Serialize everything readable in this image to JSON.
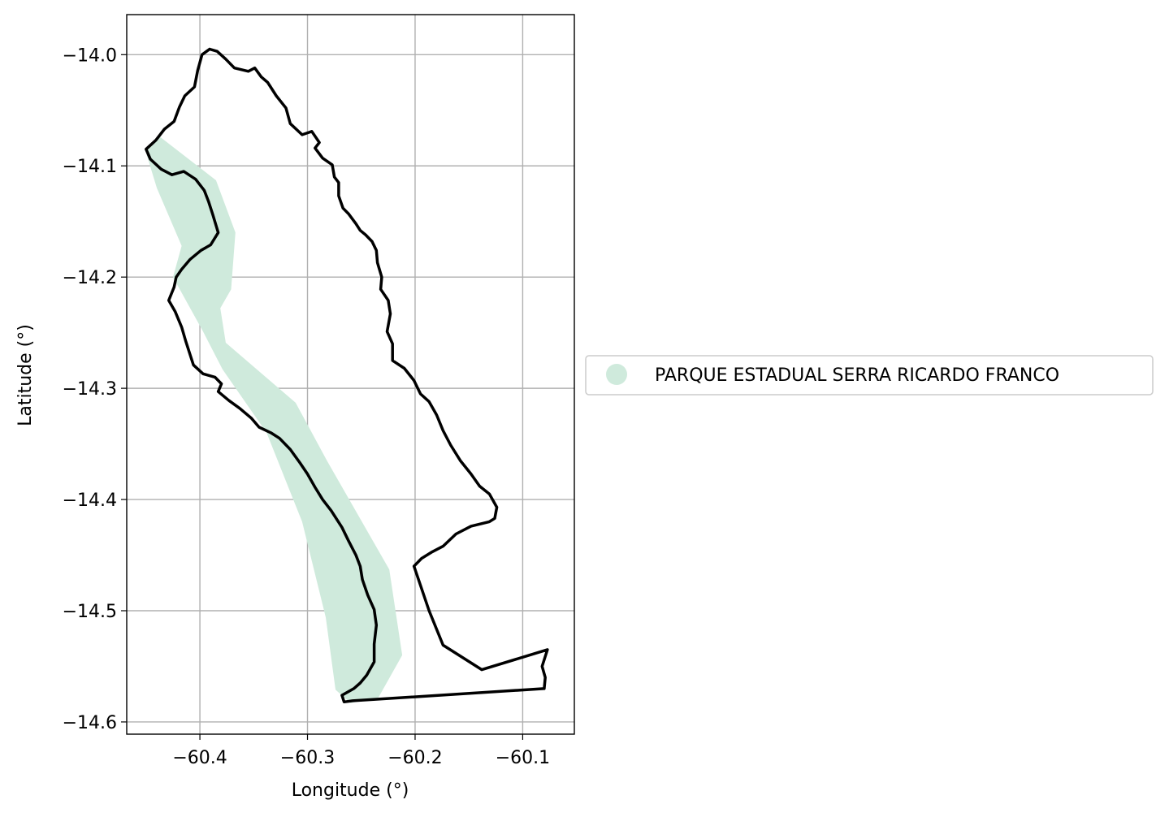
{
  "chart_data": {
    "type": "map",
    "xlabel": "Longitude (°)",
    "ylabel": "Latitude (°)",
    "xlim": [
      -60.468,
      -60.052
    ],
    "ylim": [
      -14.611,
      -13.964
    ],
    "xticks": [
      {
        "value": -60.4,
        "label": "−60.4"
      },
      {
        "value": -60.3,
        "label": "−60.3"
      },
      {
        "value": -60.2,
        "label": "−60.2"
      },
      {
        "value": -60.1,
        "label": "−60.1"
      }
    ],
    "yticks": [
      {
        "value": -14.0,
        "label": "−14.0"
      },
      {
        "value": -14.1,
        "label": "−14.1"
      },
      {
        "value": -14.2,
        "label": "−14.2"
      },
      {
        "value": -14.3,
        "label": "−14.3"
      },
      {
        "value": -14.4,
        "label": "−14.4"
      },
      {
        "value": -14.5,
        "label": "−14.5"
      },
      {
        "value": -14.6,
        "label": "−14.6"
      }
    ],
    "grid": true,
    "legend": {
      "placement": "right-center",
      "entries": [
        {
          "label": "PARQUE ESTADUAL SERRA RICARDO FRANCO",
          "color": "#cfeadc",
          "marker": "circle"
        }
      ]
    },
    "layers": [
      {
        "name": "PARQUE ESTADUAL SERRA RICARDO FRANCO",
        "kind": "fill",
        "color": "#cfeadc",
        "coords": [
          [
            -60.437,
            -14.074
          ],
          [
            -60.385,
            -14.113
          ],
          [
            -60.367,
            -14.16
          ],
          [
            -60.371,
            -14.211
          ],
          [
            -60.381,
            -14.228
          ],
          [
            -60.376,
            -14.259
          ],
          [
            -60.311,
            -14.313
          ],
          [
            -60.282,
            -14.365
          ],
          [
            -60.224,
            -14.463
          ],
          [
            -60.212,
            -14.54
          ],
          [
            -60.234,
            -14.578
          ],
          [
            -60.26,
            -14.583
          ],
          [
            -60.274,
            -14.571
          ],
          [
            -60.283,
            -14.506
          ],
          [
            -60.305,
            -14.42
          ],
          [
            -60.338,
            -14.34
          ],
          [
            -60.379,
            -14.283
          ],
          [
            -60.397,
            -14.249
          ],
          [
            -60.425,
            -14.2
          ],
          [
            -60.417,
            -14.172
          ],
          [
            -60.44,
            -14.12
          ],
          [
            -60.451,
            -14.085
          ]
        ]
      },
      {
        "name": "boundary",
        "kind": "line",
        "color": "#000000",
        "coords": [
          [
            -60.391,
            -13.995
          ],
          [
            -60.384,
            -13.997
          ],
          [
            -60.376,
            -14.004
          ],
          [
            -60.368,
            -14.012
          ],
          [
            -60.355,
            -14.015
          ],
          [
            -60.349,
            -14.012
          ],
          [
            -60.343,
            -14.02
          ],
          [
            -60.337,
            -14.025
          ],
          [
            -60.329,
            -14.037
          ],
          [
            -60.32,
            -14.048
          ],
          [
            -60.316,
            -14.062
          ],
          [
            -60.305,
            -14.072
          ],
          [
            -60.296,
            -14.069
          ],
          [
            -60.289,
            -14.079
          ],
          [
            -60.293,
            -14.084
          ],
          [
            -60.286,
            -14.093
          ],
          [
            -60.277,
            -14.099
          ],
          [
            -60.275,
            -14.11
          ],
          [
            -60.271,
            -14.115
          ],
          [
            -60.271,
            -14.127
          ],
          [
            -60.267,
            -14.138
          ],
          [
            -60.262,
            -14.143
          ],
          [
            -60.255,
            -14.152
          ],
          [
            -60.251,
            -14.158
          ],
          [
            -60.246,
            -14.162
          ],
          [
            -60.24,
            -14.168
          ],
          [
            -60.236,
            -14.176
          ],
          [
            -60.235,
            -14.187
          ],
          [
            -60.231,
            -14.2
          ],
          [
            -60.232,
            -14.211
          ],
          [
            -60.225,
            -14.221
          ],
          [
            -60.223,
            -14.233
          ],
          [
            -60.226,
            -14.249
          ],
          [
            -60.221,
            -14.26
          ],
          [
            -60.221,
            -14.275
          ],
          [
            -60.21,
            -14.282
          ],
          [
            -60.201,
            -14.293
          ],
          [
            -60.195,
            -14.305
          ],
          [
            -60.187,
            -14.312
          ],
          [
            -60.18,
            -14.324
          ],
          [
            -60.174,
            -14.338
          ],
          [
            -60.167,
            -14.351
          ],
          [
            -60.158,
            -14.365
          ],
          [
            -60.148,
            -14.377
          ],
          [
            -60.14,
            -14.388
          ],
          [
            -60.131,
            -14.395
          ],
          [
            -60.124,
            -14.407
          ],
          [
            -60.126,
            -14.417
          ],
          [
            -60.131,
            -14.42
          ],
          [
            -60.148,
            -14.424
          ],
          [
            -60.162,
            -14.431
          ],
          [
            -60.174,
            -14.442
          ],
          [
            -60.184,
            -14.447
          ],
          [
            -60.194,
            -14.453
          ],
          [
            -60.201,
            -14.46
          ],
          [
            -60.187,
            -14.5
          ],
          [
            -60.174,
            -14.531
          ],
          [
            -60.138,
            -14.553
          ],
          [
            -60.077,
            -14.535
          ],
          [
            -60.082,
            -14.55
          ],
          [
            -60.079,
            -14.56
          ],
          [
            -60.08,
            -14.57
          ],
          [
            -60.258,
            -14.581
          ],
          [
            -60.266,
            -14.582
          ],
          [
            -60.268,
            -14.576
          ],
          [
            -60.257,
            -14.57
          ],
          [
            -60.251,
            -14.565
          ],
          [
            -60.245,
            -14.558
          ],
          [
            -60.238,
            -14.546
          ],
          [
            -60.238,
            -14.53
          ],
          [
            -60.236,
            -14.513
          ],
          [
            -60.238,
            -14.499
          ],
          [
            -60.244,
            -14.486
          ],
          [
            -60.249,
            -14.472
          ],
          [
            -60.251,
            -14.46
          ],
          [
            -60.255,
            -14.45
          ],
          [
            -60.262,
            -14.437
          ],
          [
            -60.268,
            -14.425
          ],
          [
            -60.278,
            -14.41
          ],
          [
            -60.286,
            -14.4
          ],
          [
            -60.293,
            -14.389
          ],
          [
            -60.3,
            -14.377
          ],
          [
            -60.307,
            -14.367
          ],
          [
            -60.316,
            -14.355
          ],
          [
            -60.326,
            -14.345
          ],
          [
            -60.334,
            -14.34
          ],
          [
            -60.345,
            -14.335
          ],
          [
            -60.352,
            -14.327
          ],
          [
            -60.363,
            -14.318
          ],
          [
            -60.373,
            -14.311
          ],
          [
            -60.383,
            -14.303
          ],
          [
            -60.38,
            -14.296
          ],
          [
            -60.386,
            -14.29
          ],
          [
            -60.397,
            -14.287
          ],
          [
            -60.406,
            -14.279
          ],
          [
            -60.409,
            -14.27
          ],
          [
            -60.413,
            -14.258
          ],
          [
            -60.417,
            -14.245
          ],
          [
            -60.423,
            -14.231
          ],
          [
            -60.429,
            -14.221
          ],
          [
            -60.424,
            -14.209
          ],
          [
            -60.422,
            -14.2
          ],
          [
            -60.417,
            -14.193
          ],
          [
            -60.409,
            -14.184
          ],
          [
            -60.399,
            -14.176
          ],
          [
            -60.39,
            -14.171
          ],
          [
            -60.383,
            -14.16
          ],
          [
            -60.388,
            -14.144
          ],
          [
            -60.392,
            -14.132
          ],
          [
            -60.396,
            -14.122
          ],
          [
            -60.404,
            -14.112
          ],
          [
            -60.415,
            -14.105
          ],
          [
            -60.426,
            -14.108
          ],
          [
            -60.436,
            -14.103
          ],
          [
            -60.446,
            -14.094
          ],
          [
            -60.45,
            -14.085
          ],
          [
            -60.441,
            -14.077
          ],
          [
            -60.433,
            -14.067
          ],
          [
            -60.424,
            -14.06
          ],
          [
            -60.419,
            -14.047
          ],
          [
            -60.414,
            -14.037
          ],
          [
            -60.405,
            -14.029
          ],
          [
            -60.402,
            -14.014
          ],
          [
            -60.398,
            -14.0
          ],
          [
            -60.391,
            -13.995
          ]
        ]
      }
    ]
  }
}
